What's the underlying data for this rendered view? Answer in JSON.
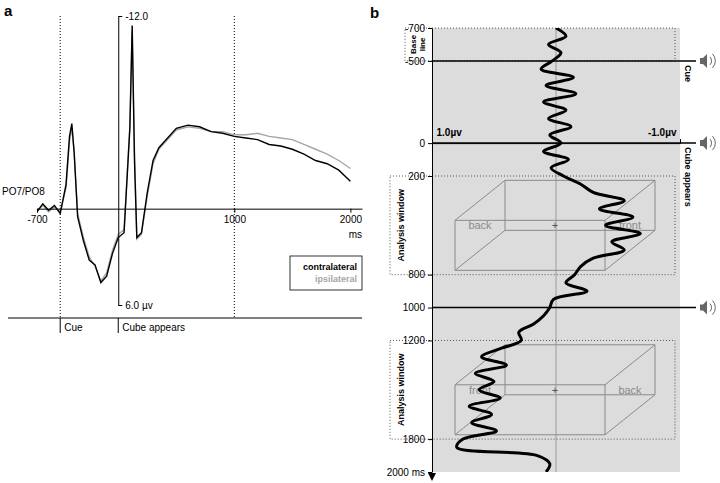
{
  "chart_data": [
    {
      "type": "line",
      "title": "a",
      "y_label": "PO7/PO8",
      "x_label": "ms",
      "x": [
        -700,
        -650,
        -600,
        -550,
        -500,
        -450,
        -420,
        -400,
        -380,
        -350,
        -300,
        -250,
        -200,
        -150,
        -100,
        -50,
        0,
        50,
        100,
        120,
        140,
        160,
        200,
        250,
        300,
        350,
        400,
        500,
        600,
        700,
        800,
        900,
        1000,
        1100,
        1200,
        1300,
        1400,
        1500,
        1600,
        1700,
        1800,
        1900,
        2000
      ],
      "series": [
        {
          "name": "contralateral",
          "color": "#000000",
          "values": [
            0.2,
            -0.3,
            0.1,
            -0.2,
            0.3,
            -1.5,
            -4.5,
            -5.3,
            -3.5,
            0.5,
            2.0,
            3.2,
            3.5,
            4.6,
            4.2,
            2.8,
            1.8,
            1.5,
            -5.0,
            -11.4,
            -3.0,
            1.8,
            1.5,
            -1.0,
            -3.0,
            -3.8,
            -4.2,
            -5.0,
            -5.2,
            -5.1,
            -4.8,
            -4.7,
            -4.5,
            -4.4,
            -4.3,
            -4.0,
            -3.9,
            -3.7,
            -3.4,
            -3.0,
            -2.8,
            -2.4,
            -1.7
          ]
        },
        {
          "name": "ipsilateral",
          "color": "#a6a6a6",
          "values": [
            0.1,
            -0.2,
            0.2,
            -0.1,
            0.2,
            -1.3,
            -4.2,
            -5.0,
            -3.6,
            0.3,
            1.8,
            3.0,
            3.6,
            4.5,
            4.0,
            2.6,
            1.6,
            1.3,
            -5.2,
            -11.0,
            -3.5,
            1.9,
            1.6,
            -0.8,
            -2.8,
            -3.7,
            -4.1,
            -4.9,
            -5.1,
            -5.0,
            -4.8,
            -4.8,
            -4.6,
            -4.6,
            -4.7,
            -4.5,
            -4.4,
            -4.3,
            -4.0,
            -3.7,
            -3.4,
            -3.0,
            -2.5
          ]
        }
      ],
      "xlim": [
        -700,
        2100
      ],
      "xticks": [
        -700,
        1000,
        2000
      ],
      "ylim": [
        6,
        -12
      ],
      "yticks": [
        {
          "value": -12,
          "label": "-12.0"
        },
        {
          "value": 6,
          "label": "6.0 µv"
        }
      ],
      "dotted_lines": [
        -500,
        1000
      ],
      "events": [
        {
          "at": -500,
          "label": "Cue"
        },
        {
          "at": 0,
          "label": "Cube appears"
        }
      ],
      "legend": "lower right"
    },
    {
      "type": "line",
      "orientation": "horizontal",
      "title": "b",
      "x": [
        -700,
        -650,
        -600,
        -550,
        -500,
        -450,
        -400,
        -350,
        -300,
        -250,
        -200,
        -150,
        -100,
        -50,
        0,
        50,
        100,
        150,
        200,
        250,
        300,
        350,
        400,
        450,
        500,
        550,
        600,
        650,
        700,
        750,
        800,
        850,
        900,
        950,
        1000,
        1050,
        1100,
        1150,
        1200,
        1250,
        1300,
        1350,
        1400,
        1450,
        1500,
        1550,
        1600,
        1650,
        1700,
        1750,
        1800,
        1850,
        1900,
        1950,
        2000
      ],
      "series": [
        {
          "color": "#000000",
          "values": [
            0.0,
            -0.08,
            0.06,
            -0.04,
            0.03,
            0.12,
            -0.14,
            0.08,
            -0.16,
            0.1,
            -0.08,
            0.06,
            -0.12,
            0.05,
            -0.04,
            0.1,
            -0.1,
            0.04,
            -0.06,
            -0.2,
            -0.3,
            -0.55,
            -0.35,
            -0.62,
            -0.4,
            -0.68,
            -0.45,
            -0.55,
            -0.3,
            -0.2,
            -0.15,
            -0.08,
            -0.25,
            0.02,
            0.05,
            0.1,
            0.18,
            0.3,
            0.28,
            0.45,
            0.6,
            0.4,
            0.65,
            0.5,
            0.62,
            0.45,
            0.7,
            0.52,
            0.68,
            0.48,
            0.75,
            0.8,
            0.15,
            0.05,
            0.08
          ]
        }
      ],
      "xlim": [
        -700,
        2000
      ],
      "xticks": [
        -700,
        -500,
        0,
        200,
        800,
        1000,
        1200,
        1800,
        {
          "value": 2000,
          "label": "2000 ms"
        }
      ],
      "ylim": [
        1,
        -1
      ],
      "yticks": [
        {
          "value": 1,
          "label": "1.0µv"
        },
        {
          "value": -1,
          "label": "-1.0µv"
        }
      ],
      "baseline": {
        "start": -700,
        "end": -500,
        "label": "Base line"
      },
      "windows": [
        {
          "start": 200,
          "end": 800,
          "label": "Analysis window",
          "cube": [
            "back",
            "+",
            "front"
          ]
        },
        {
          "start": 1200,
          "end": 1800,
          "label": "Analysis window",
          "cube": [
            "front",
            "+",
            "back"
          ]
        }
      ],
      "events": [
        {
          "at": -500,
          "label": "Cue"
        },
        {
          "at": 0,
          "label": "Cube appears"
        },
        {
          "at": 1000
        }
      ]
    }
  ]
}
